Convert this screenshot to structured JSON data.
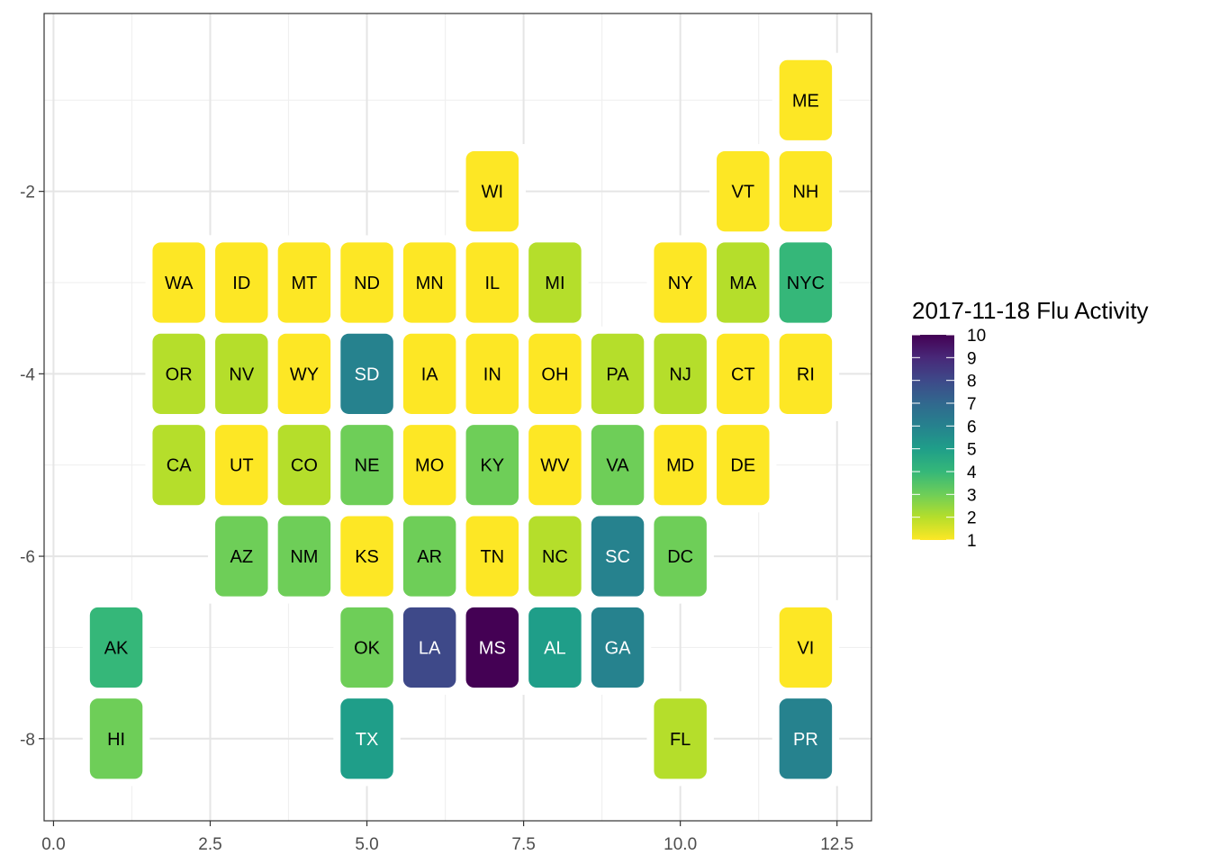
{
  "chart_data": {
    "type": "heatmap",
    "title": "",
    "xlabel": "",
    "ylabel": "",
    "xlim": [
      -0.15,
      13.05
    ],
    "ylim": [
      -8.9,
      -0.05
    ],
    "x_ticks": [
      0,
      2.5,
      5,
      7.5,
      10,
      12.5
    ],
    "x_tick_labels": [
      "0.0",
      "2.5",
      "5.0",
      "7.5",
      "10.0",
      "12.5"
    ],
    "y_ticks": [
      -2,
      -4,
      -6,
      -8
    ],
    "y_tick_labels": [
      "-2",
      "-4",
      "-6",
      "-8"
    ],
    "grid": true,
    "legend": {
      "title": "2017-11-18 Flu Activity",
      "position": "right",
      "min": 1,
      "max": 10,
      "labels": [
        "10",
        "9",
        "8",
        "7",
        "6",
        "5",
        "4",
        "3",
        "2",
        "1"
      ],
      "palette": [
        "#fde725",
        "#b5de2b",
        "#6ece58",
        "#35b779",
        "#1f9e89",
        "#26828e",
        "#31688e",
        "#3e4989",
        "#482878",
        "#440154"
      ]
    },
    "tiles": [
      {
        "label": "ME",
        "x": 12,
        "y": -1,
        "value": 1
      },
      {
        "label": "WI",
        "x": 7,
        "y": -2,
        "value": 1
      },
      {
        "label": "VT",
        "x": 11,
        "y": -2,
        "value": 1
      },
      {
        "label": "NH",
        "x": 12,
        "y": -2,
        "value": 1
      },
      {
        "label": "WA",
        "x": 2,
        "y": -3,
        "value": 1
      },
      {
        "label": "ID",
        "x": 3,
        "y": -3,
        "value": 1
      },
      {
        "label": "MT",
        "x": 4,
        "y": -3,
        "value": 1
      },
      {
        "label": "ND",
        "x": 5,
        "y": -3,
        "value": 1
      },
      {
        "label": "MN",
        "x": 6,
        "y": -3,
        "value": 1
      },
      {
        "label": "IL",
        "x": 7,
        "y": -3,
        "value": 1
      },
      {
        "label": "MI",
        "x": 8,
        "y": -3,
        "value": 2
      },
      {
        "label": "NY",
        "x": 10,
        "y": -3,
        "value": 1
      },
      {
        "label": "MA",
        "x": 11,
        "y": -3,
        "value": 2
      },
      {
        "label": "NYC",
        "x": 12,
        "y": -3,
        "value": 4
      },
      {
        "label": "OR",
        "x": 2,
        "y": -4,
        "value": 2
      },
      {
        "label": "NV",
        "x": 3,
        "y": -4,
        "value": 2
      },
      {
        "label": "WY",
        "x": 4,
        "y": -4,
        "value": 1
      },
      {
        "label": "SD",
        "x": 5,
        "y": -4,
        "value": 6
      },
      {
        "label": "IA",
        "x": 6,
        "y": -4,
        "value": 1
      },
      {
        "label": "IN",
        "x": 7,
        "y": -4,
        "value": 1
      },
      {
        "label": "OH",
        "x": 8,
        "y": -4,
        "value": 1
      },
      {
        "label": "PA",
        "x": 9,
        "y": -4,
        "value": 2
      },
      {
        "label": "NJ",
        "x": 10,
        "y": -4,
        "value": 2
      },
      {
        "label": "CT",
        "x": 11,
        "y": -4,
        "value": 1
      },
      {
        "label": "RI",
        "x": 12,
        "y": -4,
        "value": 1
      },
      {
        "label": "CA",
        "x": 2,
        "y": -5,
        "value": 2
      },
      {
        "label": "UT",
        "x": 3,
        "y": -5,
        "value": 1
      },
      {
        "label": "CO",
        "x": 4,
        "y": -5,
        "value": 2
      },
      {
        "label": "NE",
        "x": 5,
        "y": -5,
        "value": 3
      },
      {
        "label": "MO",
        "x": 6,
        "y": -5,
        "value": 1
      },
      {
        "label": "KY",
        "x": 7,
        "y": -5,
        "value": 3
      },
      {
        "label": "WV",
        "x": 8,
        "y": -5,
        "value": 1
      },
      {
        "label": "VA",
        "x": 9,
        "y": -5,
        "value": 3
      },
      {
        "label": "MD",
        "x": 10,
        "y": -5,
        "value": 1
      },
      {
        "label": "DE",
        "x": 11,
        "y": -5,
        "value": 1
      },
      {
        "label": "AZ",
        "x": 3,
        "y": -6,
        "value": 3
      },
      {
        "label": "NM",
        "x": 4,
        "y": -6,
        "value": 3
      },
      {
        "label": "KS",
        "x": 5,
        "y": -6,
        "value": 1
      },
      {
        "label": "AR",
        "x": 6,
        "y": -6,
        "value": 3
      },
      {
        "label": "TN",
        "x": 7,
        "y": -6,
        "value": 1
      },
      {
        "label": "NC",
        "x": 8,
        "y": -6,
        "value": 2
      },
      {
        "label": "SC",
        "x": 9,
        "y": -6,
        "value": 6
      },
      {
        "label": "DC",
        "x": 10,
        "y": -6,
        "value": 3
      },
      {
        "label": "AK",
        "x": 1,
        "y": -7,
        "value": 4
      },
      {
        "label": "OK",
        "x": 5,
        "y": -7,
        "value": 3
      },
      {
        "label": "LA",
        "x": 6,
        "y": -7,
        "value": 8
      },
      {
        "label": "MS",
        "x": 7,
        "y": -7,
        "value": 10
      },
      {
        "label": "AL",
        "x": 8,
        "y": -7,
        "value": 5
      },
      {
        "label": "GA",
        "x": 9,
        "y": -7,
        "value": 6
      },
      {
        "label": "VI",
        "x": 12,
        "y": -7,
        "value": 1
      },
      {
        "label": "HI",
        "x": 1,
        "y": -8,
        "value": 3
      },
      {
        "label": "TX",
        "x": 5,
        "y": -8,
        "value": 5
      },
      {
        "label": "FL",
        "x": 10,
        "y": -8,
        "value": 2
      },
      {
        "label": "PR",
        "x": 12,
        "y": -8,
        "value": 6
      }
    ]
  }
}
